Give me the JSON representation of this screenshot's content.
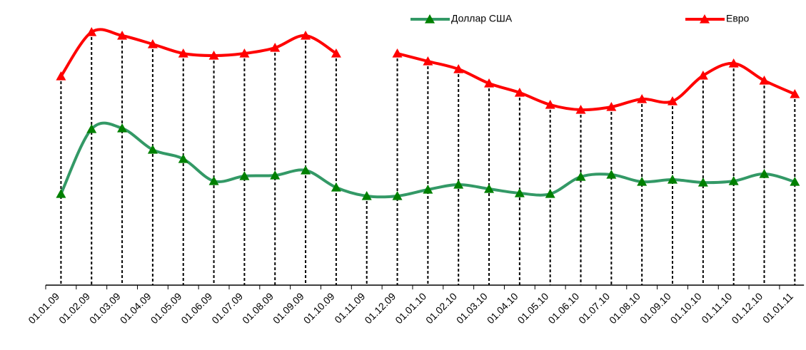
{
  "chart_data": {
    "type": "line",
    "smooth": true,
    "legend": "top",
    "categories": [
      "01.01.09",
      "01.02.09",
      "01.03.09",
      "01.04.09",
      "01.05.09",
      "01.06.09",
      "01.07.09",
      "01.08.09",
      "01.09.09",
      "01.10.09",
      "01.11.09",
      "01.12.09",
      "01.01.10",
      "01.02.10",
      "01.03.10",
      "01.04.10",
      "01.05.10",
      "01.06.10",
      "01.07.10",
      "01.08.10",
      "01.09.10",
      "01.10.10",
      "01.11.10",
      "01.12.10",
      "01.01.11"
    ],
    "ylim": [
      0,
      400
    ],
    "series": [
      {
        "name": "Доллар США",
        "color": "#339966",
        "marker_color": "#008000",
        "values": [
          128,
          219,
          220,
          190,
          177,
          146,
          153,
          154,
          161,
          137,
          125,
          125,
          134,
          141,
          135,
          129,
          128,
          152,
          155,
          145,
          148,
          144,
          146,
          156,
          145
        ]
      },
      {
        "name": "Евро",
        "color": "#ff0000",
        "marker_color": "#ff0000",
        "values": [
          293,
          355,
          350,
          338,
          325,
          322,
          325,
          333,
          350,
          325,
          null,
          325,
          314,
          303,
          283,
          270,
          253,
          246,
          250,
          261,
          258,
          294,
          311,
          287,
          268
        ]
      }
    ]
  }
}
